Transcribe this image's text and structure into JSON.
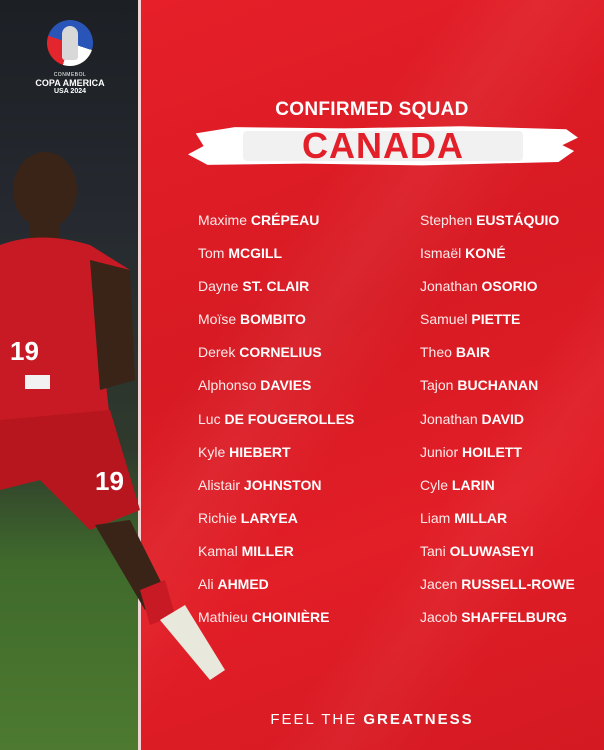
{
  "logo": {
    "org": "CONMEBOL",
    "name": "COPA AMERICA",
    "edition": "USA 2024"
  },
  "header": {
    "title": "CONFIRMED SQUAD",
    "country": "CANADA"
  },
  "squad": {
    "left": [
      {
        "first": "Maxime",
        "last": "CRÉPEAU"
      },
      {
        "first": "Tom",
        "last": "MCGILL"
      },
      {
        "first": "Dayne",
        "last": "ST. CLAIR"
      },
      {
        "first": "Moïse",
        "last": "BOMBITO"
      },
      {
        "first": "Derek",
        "last": "CORNELIUS"
      },
      {
        "first": "Alphonso",
        "last": "DAVIES"
      },
      {
        "first": "Luc",
        "last": "DE FOUGEROLLES"
      },
      {
        "first": "Kyle",
        "last": "HIEBERT"
      },
      {
        "first": "Alistair",
        "last": "JOHNSTON"
      },
      {
        "first": "Richie",
        "last": "LARYEA"
      },
      {
        "first": "Kamal",
        "last": "MILLER"
      },
      {
        "first": "Ali",
        "last": "AHMED"
      },
      {
        "first": "Mathieu",
        "last": "CHOINIÈRE"
      }
    ],
    "right": [
      {
        "first": "Stephen",
        "last": "EUSTÁQUIO"
      },
      {
        "first": "Ismaël",
        "last": "KONÉ"
      },
      {
        "first": "Jonathan",
        "last": "OSORIO"
      },
      {
        "first": "Samuel",
        "last": "PIETTE"
      },
      {
        "first": "Theo",
        "last": "BAIR"
      },
      {
        "first": "Tajon",
        "last": "BUCHANAN"
      },
      {
        "first": "Jonathan",
        "last": "DAVID"
      },
      {
        "first": "Junior",
        "last": "HOILETT"
      },
      {
        "first": "Cyle",
        "last": "LARIN"
      },
      {
        "first": "Liam",
        "last": "MILLAR"
      },
      {
        "first": "Tani",
        "last": "OLUWASEYI"
      },
      {
        "first": "Jacen",
        "last": "RUSSELL-ROWE"
      },
      {
        "first": "Jacob",
        "last": "SHAFFELBURG"
      }
    ]
  },
  "player": {
    "shirt_number": "19"
  },
  "footer": {
    "lead": "FEEL THE",
    "emphasis": "GREATNESS"
  },
  "colors": {
    "brand_red": "#e3202a",
    "text": "#ffffff"
  }
}
